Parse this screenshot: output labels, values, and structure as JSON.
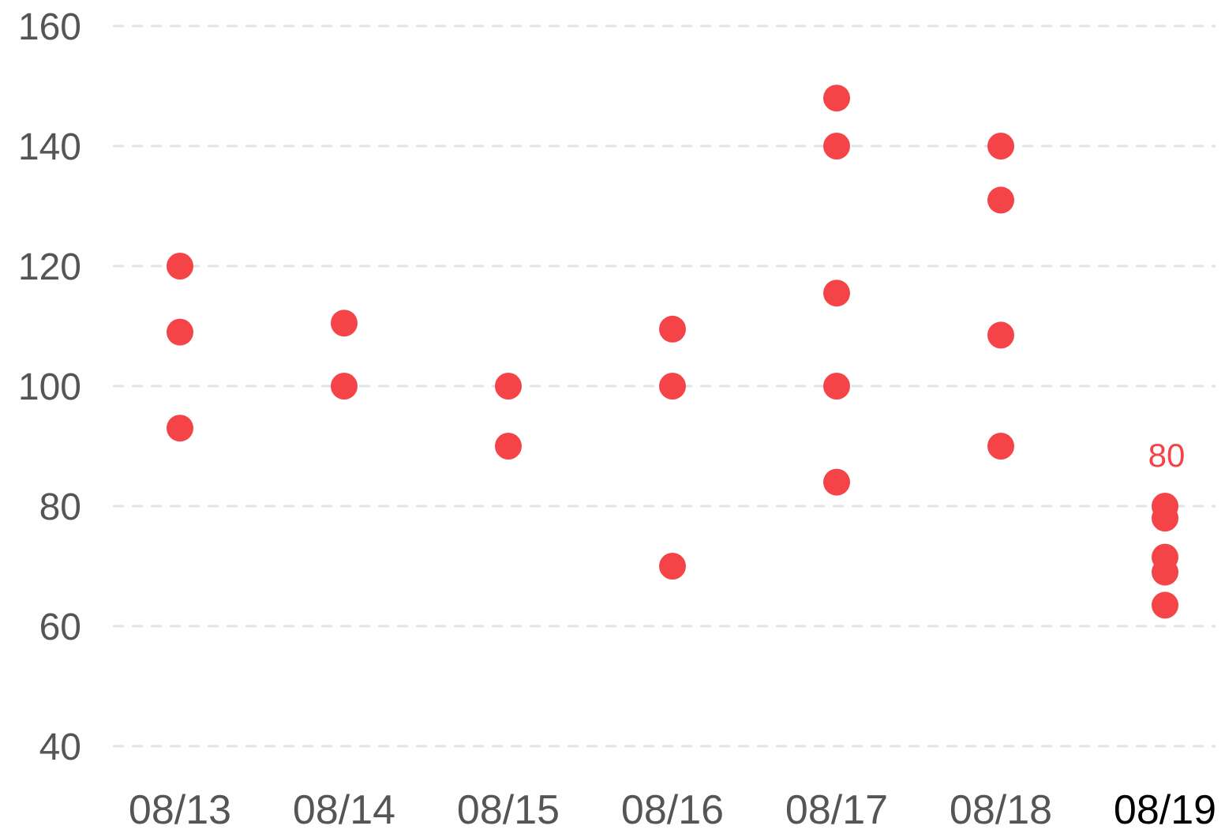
{
  "chart_data": {
    "type": "scatter",
    "title": "",
    "xlabel": "",
    "ylabel": "",
    "categories": [
      "08/13",
      "08/14",
      "08/15",
      "08/16",
      "08/17",
      "08/18",
      "08/19"
    ],
    "highlight_category": "08/19",
    "points": [
      {
        "x": "08/13",
        "y": 120
      },
      {
        "x": "08/13",
        "y": 109
      },
      {
        "x": "08/13",
        "y": 93
      },
      {
        "x": "08/14",
        "y": 110.5
      },
      {
        "x": "08/14",
        "y": 100
      },
      {
        "x": "08/15",
        "y": 100
      },
      {
        "x": "08/15",
        "y": 90
      },
      {
        "x": "08/16",
        "y": 109.5
      },
      {
        "x": "08/16",
        "y": 100
      },
      {
        "x": "08/16",
        "y": 70
      },
      {
        "x": "08/17",
        "y": 148
      },
      {
        "x": "08/17",
        "y": 140
      },
      {
        "x": "08/17",
        "y": 115.5
      },
      {
        "x": "08/17",
        "y": 100
      },
      {
        "x": "08/17",
        "y": 84
      },
      {
        "x": "08/18",
        "y": 140
      },
      {
        "x": "08/18",
        "y": 131
      },
      {
        "x": "08/18",
        "y": 108.5
      },
      {
        "x": "08/18",
        "y": 90
      },
      {
        "x": "08/19",
        "y": 80
      },
      {
        "x": "08/19",
        "y": 78
      },
      {
        "x": "08/19",
        "y": 71.5
      },
      {
        "x": "08/19",
        "y": 69
      },
      {
        "x": "08/19",
        "y": 63.5
      }
    ],
    "annotations": [
      {
        "x": "08/19",
        "y": 80,
        "text": "80"
      }
    ],
    "yticks": [
      40,
      60,
      80,
      100,
      120,
      140,
      160
    ],
    "ylim": [
      40,
      160
    ],
    "grid": true,
    "legend": "none",
    "colors": {
      "point": "#f44447",
      "grid": "#e3e3e3",
      "tick_text": "#555555",
      "highlight_tick": "#000000",
      "annotation_text": "#f44447"
    }
  }
}
